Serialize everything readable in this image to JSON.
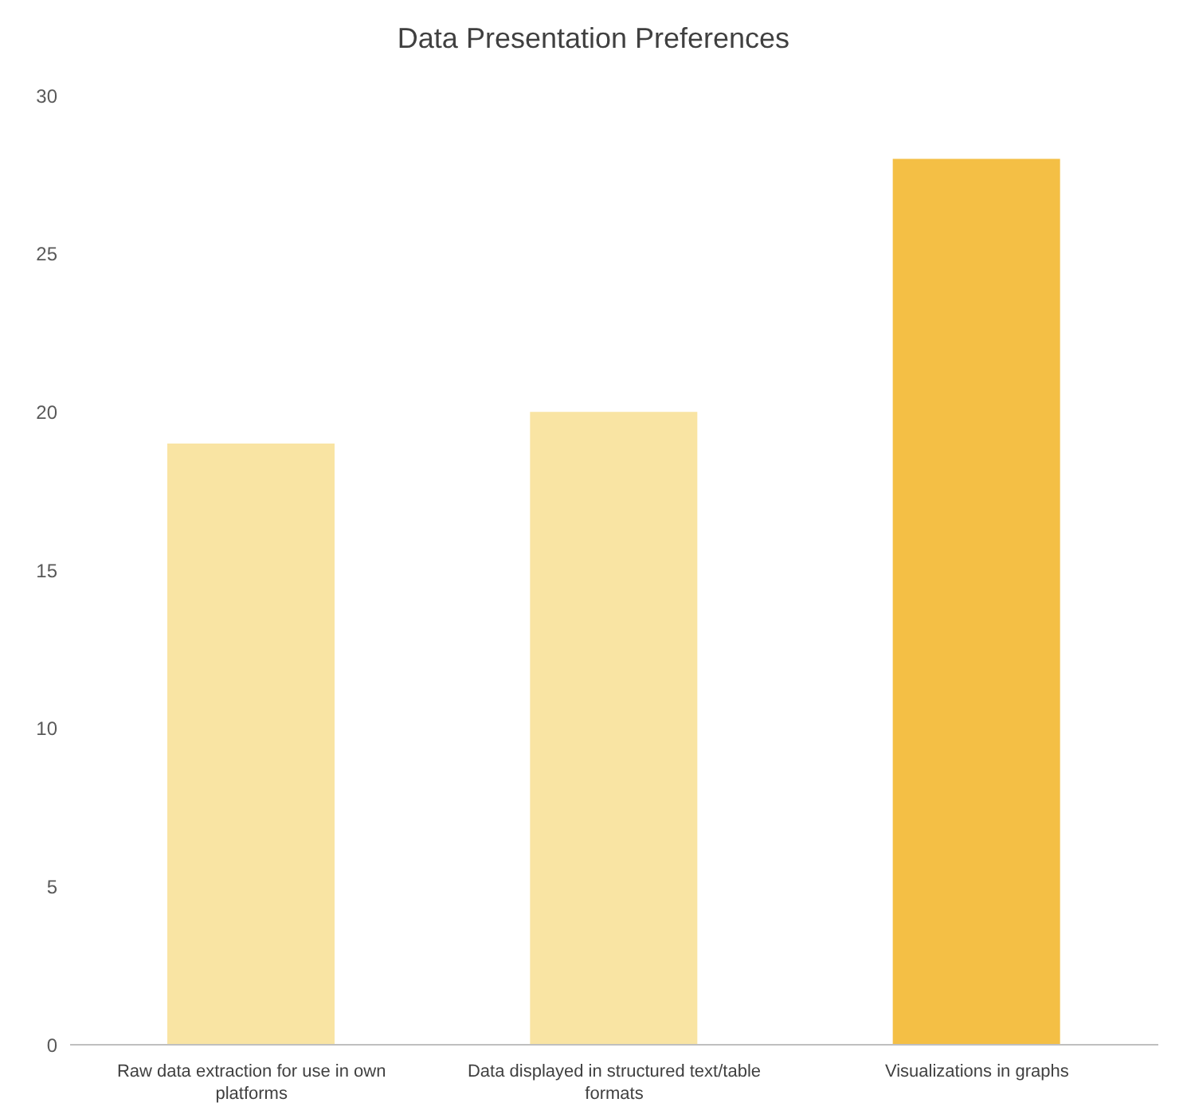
{
  "chart_data": {
    "type": "bar",
    "title": "Data Presentation Preferences",
    "categories": [
      "Raw data extraction for use in own platforms",
      "Data displayed in structured text/table formats",
      "Visualizations in graphs"
    ],
    "values": [
      19,
      20,
      28
    ],
    "colors": [
      "#f9e4a3",
      "#f9e4a3",
      "#f4bf45"
    ],
    "ylim": [
      0,
      30
    ],
    "yticks": [
      0,
      5,
      10,
      15,
      20,
      25,
      30
    ],
    "grid": false
  }
}
